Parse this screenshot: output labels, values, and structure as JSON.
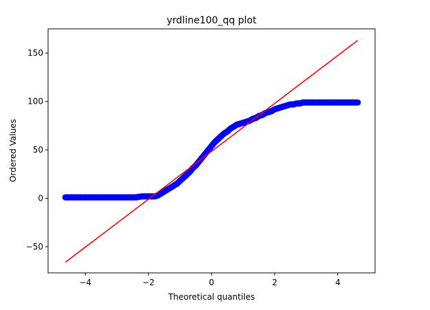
{
  "chart_data": {
    "type": "scatter",
    "title": "yrdline100_qq plot",
    "xlabel": "Theoretical quantiles",
    "ylabel": "Ordered Values",
    "xlim": [
      -5.18,
      5.18
    ],
    "ylim": [
      -77,
      175
    ],
    "xticks": [
      -4,
      -2,
      0,
      2,
      4
    ],
    "xtick_labels": [
      "−4",
      "−2",
      "0",
      "2",
      "4"
    ],
    "yticks": [
      -50,
      0,
      50,
      100,
      150
    ],
    "ytick_labels": [
      "−50",
      "0",
      "50",
      "100",
      "150"
    ],
    "grid": false,
    "series": [
      {
        "kind": "points",
        "color": "#0000ff",
        "x": [
          -4.63,
          -4.4,
          -4.2,
          -4.0,
          -3.8,
          -3.6,
          -3.4,
          -3.2,
          -3.0,
          -2.8,
          -2.6,
          -2.4,
          -2.2,
          -2.0,
          -1.9,
          -1.8,
          -1.7,
          -1.6,
          -1.5,
          -1.4,
          -1.3,
          -1.2,
          -1.1,
          -1.0,
          -0.9,
          -0.8,
          -0.7,
          -0.6,
          -0.5,
          -0.4,
          -0.3,
          -0.2,
          -0.1,
          0.0,
          0.1,
          0.2,
          0.3,
          0.4,
          0.5,
          0.6,
          0.7,
          0.8,
          0.9,
          1.0,
          1.1,
          1.2,
          1.3,
          1.4,
          1.5,
          1.6,
          1.7,
          1.8,
          1.9,
          2.0,
          2.1,
          2.2,
          2.3,
          2.4,
          2.5,
          2.6,
          2.7,
          2.8,
          2.9,
          3.0,
          3.2,
          3.4,
          3.6,
          3.8,
          4.0,
          4.2,
          4.4,
          4.63
        ],
        "y": [
          1,
          1,
          1,
          1,
          1,
          1,
          1,
          1,
          1,
          1,
          1,
          1,
          2,
          2,
          2,
          2,
          3,
          5,
          7,
          9,
          11,
          13,
          15,
          18,
          21,
          24,
          27,
          31,
          34,
          38,
          42,
          46,
          50,
          54,
          58,
          61,
          64,
          67,
          69,
          72,
          74,
          76,
          77,
          78,
          79,
          80,
          82,
          83,
          85,
          86,
          88,
          89,
          90,
          92,
          93,
          94,
          95,
          96,
          97,
          97,
          98,
          98,
          99,
          99,
          99,
          99,
          99,
          99,
          99,
          99,
          99,
          99
        ]
      },
      {
        "kind": "fit-line",
        "color": "#ff0000",
        "x": [
          -4.63,
          4.63
        ],
        "y": [
          -66,
          163
        ]
      }
    ]
  }
}
